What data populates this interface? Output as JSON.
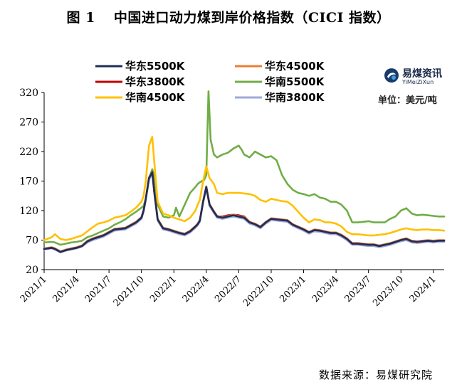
{
  "title": {
    "figure": "图 1",
    "text": "中国进口动力煤到岸价格指数（CICI 指数）"
  },
  "source": "数据来源：易煤研究院",
  "brand": {
    "name": "易煤资讯",
    "sub": "YiMeiZiXun",
    "unit": "单位：美元/吨"
  },
  "chart_data": {
    "type": "line",
    "title": "中国进口动力煤到岸价格指数（CICI 指数）",
    "xlabel": "",
    "ylabel": "美元/吨",
    "ylim": [
      20,
      320
    ],
    "yticks": [
      20,
      70,
      120,
      170,
      220,
      270,
      320
    ],
    "x_ticks": [
      "2021/1",
      "2021/4",
      "2021/7",
      "2021/10",
      "2022/1",
      "2022/4",
      "2022/7",
      "2022/10",
      "2023/1",
      "2023/4",
      "2023/7",
      "2023/10",
      "2024/1"
    ],
    "x_range": [
      0,
      37
    ],
    "legend_position": "top",
    "series": [
      {
        "name": "华东5500K",
        "color": "#1f2d5a",
        "x": [
          0,
          0.7,
          1,
          1.5,
          2,
          2.5,
          3,
          3.5,
          4,
          4.5,
          5,
          5.5,
          6,
          6.5,
          7,
          7.5,
          8,
          8.5,
          9,
          9.2,
          9.4,
          9.7,
          10,
          10.2,
          10.5,
          11,
          11.5,
          12,
          12.5,
          13,
          13.5,
          14,
          14.2,
          14.4,
          14.7,
          15,
          15.3,
          15.7,
          16,
          16.5,
          17,
          17.5,
          18,
          18.5,
          19,
          19.5,
          20,
          20.5,
          21,
          21.5,
          22,
          22.5,
          23,
          23.5,
          24,
          24.5,
          25,
          25.5,
          26,
          26.5,
          27,
          27.5,
          28,
          28.5,
          29,
          29.5,
          30,
          30.5,
          31,
          31.5,
          32,
          32.5,
          33,
          33.5,
          34,
          34.5,
          35,
          35.5,
          36,
          36.5,
          37
        ],
        "values": [
          55,
          57,
          55,
          50,
          53,
          55,
          57,
          60,
          68,
          72,
          75,
          78,
          83,
          88,
          89,
          90,
          95,
          100,
          108,
          120,
          140,
          175,
          185,
          150,
          105,
          90,
          88,
          85,
          82,
          80,
          85,
          93,
          97,
          103,
          135,
          160,
          130,
          118,
          110,
          108,
          110,
          112,
          110,
          108,
          100,
          97,
          92,
          100,
          106,
          105,
          104,
          103,
          96,
          92,
          88,
          83,
          87,
          86,
          84,
          82,
          82,
          78,
          72,
          64,
          64,
          63,
          62,
          62,
          60,
          62,
          64,
          67,
          70,
          72,
          68,
          67,
          68,
          69,
          68,
          69,
          69
        ]
      },
      {
        "name": "华东4500K",
        "color": "#ed7d31",
        "x": [
          0,
          0.7,
          1,
          1.5,
          2,
          2.5,
          3,
          3.5,
          4,
          4.5,
          5,
          5.5,
          6,
          6.5,
          7,
          7.5,
          8,
          8.5,
          9,
          9.2,
          9.4,
          9.7,
          10,
          10.2,
          10.5,
          11,
          11.5,
          12,
          12.5,
          13,
          13.5,
          14,
          14.2,
          14.4,
          14.7,
          15,
          15.3,
          15.7,
          16,
          16.5,
          17,
          17.5,
          18,
          18.5,
          19,
          19.5,
          20,
          20.5,
          21,
          21.5,
          22,
          22.5,
          23,
          23.5,
          24,
          24.5,
          25,
          25.5,
          26,
          26.5,
          27,
          27.5,
          28,
          28.5,
          29,
          29.5,
          30,
          30.5,
          31,
          31.5,
          32,
          32.5,
          33,
          33.5,
          34,
          34.5,
          35,
          35.5,
          36,
          36.5,
          37
        ],
        "values": [
          56,
          58,
          56,
          51,
          54,
          56,
          58,
          61,
          69,
          73,
          76,
          79,
          84,
          89,
          90,
          91,
          96,
          101,
          109,
          121,
          141,
          176,
          186,
          151,
          106,
          91,
          89,
          86,
          83,
          81,
          86,
          94,
          98,
          104,
          136,
          161,
          131,
          119,
          111,
          109,
          111,
          113,
          111,
          109,
          101,
          98,
          93,
          101,
          107,
          106,
          105,
          104,
          97,
          93,
          89,
          84,
          88,
          87,
          85,
          83,
          83,
          79,
          73,
          65,
          65,
          64,
          63,
          63,
          61,
          63,
          65,
          68,
          71,
          73,
          69,
          68,
          69,
          70,
          69,
          70,
          70
        ]
      },
      {
        "name": "华东3800K",
        "color": "#c00000",
        "x": [
          0,
          0.7,
          1,
          1.5,
          2,
          2.5,
          3,
          3.5,
          4,
          4.5,
          5,
          5.5,
          6,
          6.5,
          7,
          7.5,
          8,
          8.5,
          9,
          9.2,
          9.4,
          9.7,
          10,
          10.2,
          10.5,
          11,
          11.5,
          12,
          12.5,
          13,
          13.5,
          14,
          14.2,
          14.4,
          14.7,
          15,
          15.3,
          15.7,
          16,
          16.5,
          17,
          17.5,
          18,
          18.5,
          19,
          19.5,
          20,
          20.5,
          21,
          21.5,
          22,
          22.5,
          23,
          23.5,
          24,
          24.5,
          25,
          25.5,
          26,
          26.5,
          27,
          27.5,
          28,
          28.5,
          29,
          29.5,
          30,
          30.5,
          31,
          31.5,
          32,
          32.5,
          33,
          33.5,
          34,
          34.5,
          35,
          35.5,
          36,
          36.5,
          37
        ],
        "values": [
          55,
          57,
          55,
          50,
          53,
          55,
          57,
          60,
          68,
          72,
          75,
          78,
          83,
          88,
          89,
          90,
          95,
          100,
          108,
          120,
          140,
          175,
          185,
          150,
          105,
          90,
          88,
          85,
          82,
          80,
          85,
          93,
          97,
          103,
          135,
          160,
          130,
          118,
          110,
          110,
          112,
          113,
          112,
          110,
          101,
          97,
          92,
          100,
          106,
          105,
          104,
          103,
          96,
          92,
          88,
          83,
          87,
          86,
          84,
          82,
          82,
          78,
          72,
          64,
          64,
          63,
          62,
          62,
          60,
          62,
          64,
          67,
          70,
          72,
          68,
          67,
          68,
          69,
          68,
          69,
          69
        ]
      },
      {
        "name": "华南5500K",
        "color": "#70ad47",
        "x": [
          0,
          0.7,
          1,
          1.5,
          2,
          2.5,
          3,
          3.5,
          4,
          4.5,
          5,
          5.5,
          6,
          6.5,
          7,
          7.5,
          8,
          8.5,
          9,
          9.2,
          9.4,
          9.7,
          10,
          10.2,
          10.5,
          11,
          11.5,
          12,
          12.2,
          12.5,
          13,
          13.5,
          14,
          14.2,
          14.4,
          14.6,
          14.8,
          15,
          15.2,
          15.4,
          15.7,
          16,
          16.5,
          17,
          17.5,
          18,
          18.3,
          18.5,
          19,
          19.5,
          20,
          20.5,
          21,
          21.5,
          22,
          22.5,
          23,
          23.5,
          24,
          24.5,
          25,
          25.5,
          26,
          26.5,
          27,
          27.5,
          28,
          28.5,
          29,
          29.5,
          30,
          30.5,
          31,
          31.5,
          32,
          32.5,
          33,
          33.5,
          34,
          34.5,
          35,
          35.5,
          36,
          36.5,
          37
        ],
        "values": [
          66,
          67,
          66,
          62,
          64,
          66,
          67,
          69,
          75,
          78,
          82,
          86,
          90,
          96,
          100,
          105,
          112,
          118,
          125,
          128,
          140,
          175,
          190,
          178,
          130,
          110,
          108,
          112,
          125,
          110,
          130,
          150,
          160,
          165,
          168,
          170,
          172,
          180,
          322,
          240,
          215,
          210,
          215,
          218,
          225,
          230,
          222,
          215,
          210,
          220,
          215,
          210,
          212,
          205,
          180,
          165,
          155,
          150,
          148,
          145,
          148,
          142,
          140,
          135,
          135,
          130,
          120,
          100,
          100,
          101,
          102,
          100,
          100,
          100,
          106,
          110,
          120,
          124,
          115,
          112,
          113,
          112,
          111,
          110,
          110
        ]
      },
      {
        "name": "华南4500K",
        "color": "#ffc000",
        "x": [
          0,
          0.7,
          1,
          1.5,
          2,
          2.5,
          3,
          3.5,
          4,
          4.5,
          5,
          5.5,
          6,
          6.5,
          7,
          7.5,
          8,
          8.5,
          9,
          9.2,
          9.4,
          9.7,
          10,
          10.2,
          10.5,
          11,
          11.5,
          12,
          12.5,
          13,
          13.5,
          14,
          14.2,
          14.4,
          14.7,
          15,
          15.3,
          15.7,
          16,
          16.5,
          17,
          17.5,
          18,
          18.5,
          19,
          19.5,
          20,
          20.5,
          21,
          21.5,
          22,
          22.5,
          23,
          23.5,
          24,
          24.5,
          25,
          25.5,
          26,
          26.5,
          27,
          27.5,
          28,
          28.5,
          29,
          29.5,
          30,
          30.5,
          31,
          31.5,
          32,
          32.5,
          33,
          33.5,
          34,
          34.5,
          35,
          35.5,
          36,
          36.5,
          37
        ],
        "values": [
          70,
          75,
          80,
          72,
          70,
          72,
          75,
          78,
          85,
          92,
          98,
          100,
          103,
          108,
          110,
          112,
          118,
          125,
          135,
          145,
          170,
          230,
          245,
          200,
          135,
          115,
          112,
          108,
          105,
          102,
          108,
          120,
          130,
          138,
          170,
          195,
          175,
          165,
          150,
          148,
          150,
          150,
          150,
          149,
          148,
          145,
          138,
          135,
          140,
          138,
          136,
          135,
          128,
          118,
          108,
          100,
          105,
          104,
          100,
          100,
          98,
          93,
          84,
          80,
          80,
          79,
          78,
          78,
          79,
          80,
          82,
          85,
          88,
          90,
          88,
          87,
          88,
          88,
          87,
          87,
          86
        ]
      },
      {
        "name": "华南3800K",
        "color": "#9fa8da",
        "x": [
          0,
          0.7,
          1,
          1.5,
          2,
          2.5,
          3,
          3.5,
          4,
          4.5,
          5,
          5.5,
          6,
          6.5,
          7,
          7.5,
          8,
          8.5,
          9,
          9.2,
          9.4,
          9.7,
          10,
          10.2,
          10.5,
          11,
          11.5,
          12,
          12.5,
          13,
          13.5,
          14,
          14.2,
          14.4,
          14.7,
          15,
          15.3,
          15.7,
          16,
          16.5,
          17,
          17.5,
          18,
          18.5,
          19,
          19.5,
          20,
          20.5,
          21,
          21.5,
          22,
          22.5,
          23,
          23.5,
          24,
          24.5,
          25,
          25.5,
          26,
          26.5,
          27,
          27.5,
          28,
          28.5,
          29,
          29.5,
          30,
          30.5,
          31,
          31.5,
          32,
          32.5,
          33,
          33.5,
          34,
          34.5,
          35,
          35.5,
          36,
          36.5,
          37
        ],
        "values": [
          54,
          56,
          54,
          49,
          52,
          54,
          56,
          59,
          66,
          70,
          73,
          76,
          81,
          86,
          87,
          88,
          93,
          98,
          106,
          118,
          138,
          172,
          182,
          148,
          103,
          88,
          86,
          83,
          80,
          78,
          83,
          91,
          95,
          101,
          133,
          158,
          128,
          116,
          108,
          106,
          108,
          110,
          108,
          106,
          98,
          95,
          90,
          98,
          104,
          103,
          102,
          101,
          94,
          90,
          86,
          81,
          85,
          84,
          82,
          80,
          80,
          76,
          70,
          62,
          62,
          61,
          60,
          60,
          58,
          60,
          62,
          65,
          68,
          70,
          66,
          65,
          66,
          67,
          66,
          67,
          67
        ]
      }
    ]
  }
}
